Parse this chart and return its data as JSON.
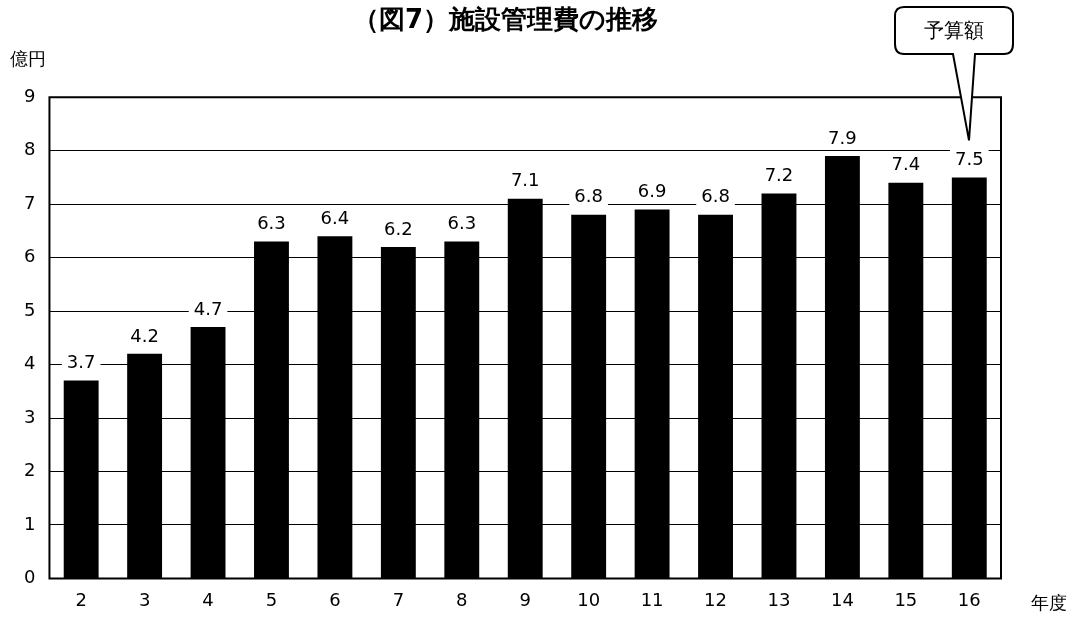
{
  "chart_data": {
    "type": "bar",
    "title": "（図7）施設管理費の推移",
    "xlabel": "年度",
    "ylabel": "億円",
    "categories": [
      "2",
      "3",
      "4",
      "5",
      "6",
      "7",
      "8",
      "9",
      "10",
      "11",
      "12",
      "13",
      "14",
      "15",
      "16"
    ],
    "values": [
      3.7,
      4.2,
      4.7,
      6.3,
      6.4,
      6.2,
      6.3,
      7.1,
      6.8,
      6.9,
      6.8,
      7.2,
      7.9,
      7.4,
      7.5
    ],
    "color": "#000000",
    "ylim": [
      0,
      9
    ],
    "yticks": [
      0,
      1,
      2,
      3,
      4,
      5,
      6,
      7,
      8,
      9
    ],
    "grid": "y",
    "legend": false,
    "data_labels": true,
    "annotations": [
      "予算額"
    ]
  }
}
